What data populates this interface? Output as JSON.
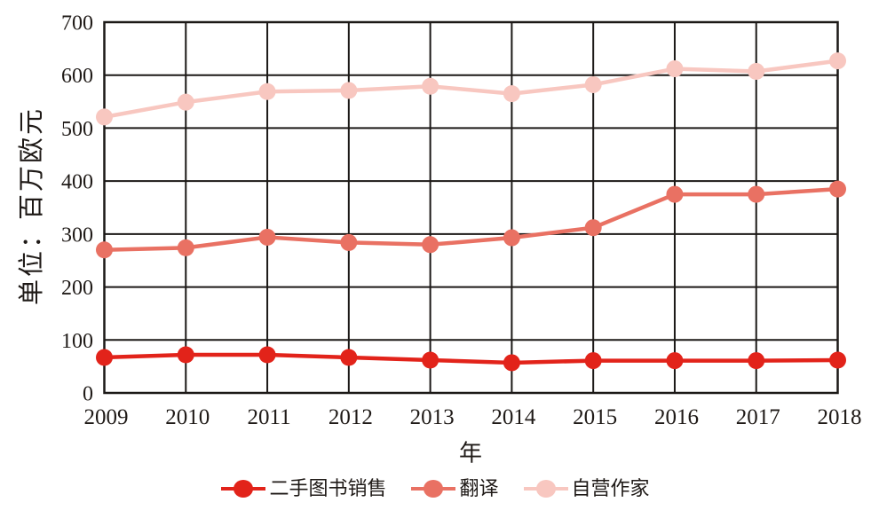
{
  "chart_data": {
    "type": "line",
    "title": "",
    "xlabel": "年",
    "ylabel": "单位：百万欧元",
    "x": [
      2009,
      2010,
      2011,
      2012,
      2013,
      2014,
      2015,
      2016,
      2017,
      2018
    ],
    "ylim": [
      0,
      700
    ],
    "yticks": [
      0,
      100,
      200,
      300,
      400,
      500,
      600,
      700
    ],
    "grid": true,
    "legend_position": "bottom",
    "series": [
      {
        "name": "二手图书销售",
        "color": "#e2231a",
        "values": [
          67,
          72,
          72,
          67,
          62,
          57,
          61,
          61,
          61,
          62
        ]
      },
      {
        "name": "翻译",
        "color": "#e97163",
        "values": [
          270,
          274,
          294,
          284,
          280,
          293,
          312,
          375,
          375,
          385
        ]
      },
      {
        "name": "自营作家",
        "color": "#f8c7c0",
        "values": [
          521,
          549,
          569,
          571,
          579,
          565,
          582,
          612,
          607,
          627
        ]
      }
    ]
  },
  "colors": {
    "grid": "#1c1917",
    "text": "#1f1a17",
    "background": "#ffffff"
  }
}
